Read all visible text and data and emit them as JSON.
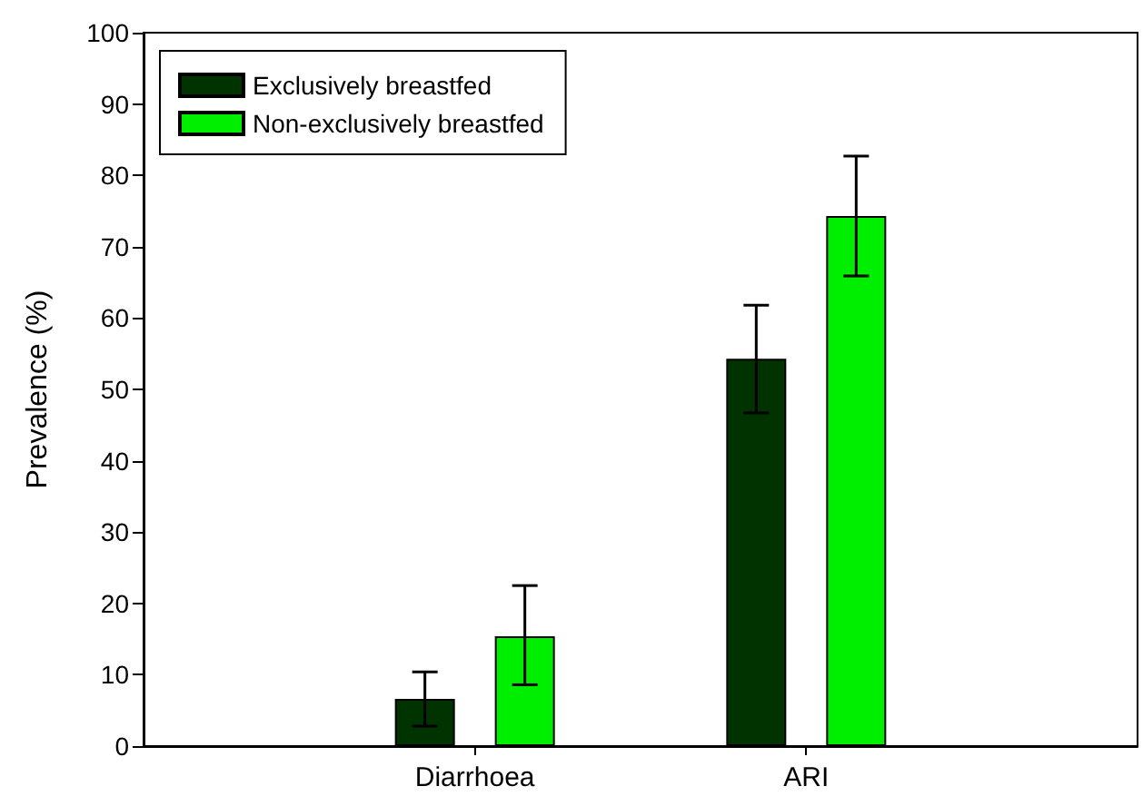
{
  "chart_data": {
    "type": "bar",
    "ylabel": "Prevalence (%)",
    "categories": [
      "Diarrhoea",
      "ARI"
    ],
    "series": [
      {
        "name": "Exclusively breastfed",
        "color": "#003300",
        "values": [
          6.6,
          54.3
        ],
        "errors": [
          [
            2.8,
            10.4
          ],
          [
            46.7,
            61.8
          ]
        ]
      },
      {
        "name": "Non-exclusively breastfed",
        "color": "#00ee00",
        "values": [
          15.4,
          74.3
        ],
        "errors": [
          [
            8.6,
            22.5
          ],
          [
            65.9,
            82.7
          ]
        ]
      }
    ],
    "ylim": [
      0,
      100
    ],
    "yticks": [
      0,
      10,
      20,
      30,
      40,
      50,
      60,
      70,
      80,
      90,
      100
    ],
    "grid": false,
    "legend": "top left"
  }
}
